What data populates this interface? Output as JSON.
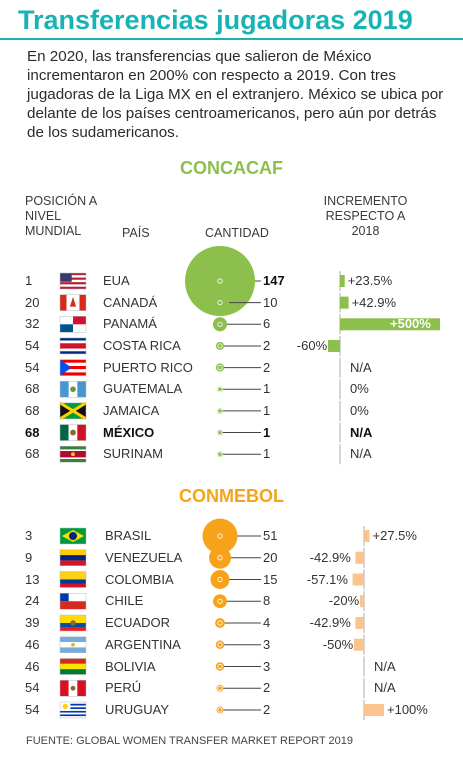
{
  "title": "Transferencias jugadoras 2019",
  "intro": "En 2020, las transferencias que salieron de México incrementaron en 200% con respecto a 2019. Con tres jugadoras de la Liga MX en el extranjero. México se ubica por delante de los países centroamericanos, pero aún por detrás de los sudamericanos.",
  "headers": {
    "rank": "POSICIÓN A NIVEL MUNDIAL",
    "country": "PAÍS",
    "amount": "CANTIDAD",
    "increase": "INCREMENTO RESPECTO A 2018"
  },
  "source": "FUENTE: GLOBAL WOMEN TRANSFER MARKET REPORT 2019",
  "colors": {
    "title": "#17b3b5",
    "concacaf": "#8cbf4b",
    "conmebol": "#f7a21b",
    "conmebol_bar": "#fbc38d"
  },
  "chart_data": [
    {
      "type": "bubble",
      "title": "CONCACAF",
      "rows": [
        {
          "rank": "1",
          "country": "EUA",
          "flag": "usa-flag",
          "amount": 147,
          "amount_label": "147",
          "increase": 23.5,
          "increase_label": "+23.5%",
          "bold": false
        },
        {
          "rank": "20",
          "country": "CANADÁ",
          "flag": "canada-flag",
          "amount": 10,
          "amount_label": "10",
          "increase": 42.9,
          "increase_label": "+42.9%",
          "bold": false
        },
        {
          "rank": "32",
          "country": "PANAMÁ",
          "flag": "panama-flag",
          "amount": 6,
          "amount_label": "6",
          "increase": 500,
          "increase_label": "+500%",
          "bold": false
        },
        {
          "rank": "54",
          "country": "COSTA RICA",
          "flag": "costa-rica-flag",
          "amount": 2,
          "amount_label": "2",
          "increase": -60,
          "increase_label": "-60%",
          "bold": false
        },
        {
          "rank": "54",
          "country": "PUERTO RICO",
          "flag": "puerto-rico-flag",
          "amount": 2,
          "amount_label": "2",
          "increase": null,
          "increase_label": "N/A",
          "bold": false
        },
        {
          "rank": "68",
          "country": "GUATEMALA",
          "flag": "guatemala-flag",
          "amount": 1,
          "amount_label": "1",
          "increase": 0,
          "increase_label": "0%",
          "bold": false
        },
        {
          "rank": "68",
          "country": "JAMAICA",
          "flag": "jamaica-flag",
          "amount": 1,
          "amount_label": "1",
          "increase": 0,
          "increase_label": "0%",
          "bold": false
        },
        {
          "rank": "68",
          "country": "MÉXICO",
          "flag": "mexico-flag",
          "amount": 1,
          "amount_label": "1",
          "increase": null,
          "increase_label": "N/A",
          "bold": true
        },
        {
          "rank": "68",
          "country": "SURINAM",
          "flag": "suriname-flag",
          "amount": 1,
          "amount_label": "1",
          "increase": null,
          "increase_label": "N/A",
          "bold": false
        }
      ]
    },
    {
      "type": "bubble",
      "title": "CONMEBOL",
      "rows": [
        {
          "rank": "3",
          "country": "BRASIL",
          "flag": "brazil-flag",
          "amount": 51,
          "amount_label": "51",
          "increase": 27.5,
          "increase_label": "+27.5%",
          "bold": false
        },
        {
          "rank": "9",
          "country": "VENEZUELA",
          "flag": "venezuela-flag",
          "amount": 20,
          "amount_label": "20",
          "increase": -42.9,
          "increase_label": "-42.9%",
          "bold": false
        },
        {
          "rank": "13",
          "country": "COLOMBIA",
          "flag": "colombia-flag",
          "amount": 15,
          "amount_label": "15",
          "increase": -57.1,
          "increase_label": "-57.1%",
          "bold": false
        },
        {
          "rank": "24",
          "country": "CHILE",
          "flag": "chile-flag",
          "amount": 8,
          "amount_label": "8",
          "increase": -20,
          "increase_label": "-20%",
          "bold": false
        },
        {
          "rank": "39",
          "country": "ECUADOR",
          "flag": "ecuador-flag",
          "amount": 4,
          "amount_label": "4",
          "increase": -42.9,
          "increase_label": "-42.9%",
          "bold": false
        },
        {
          "rank": "46",
          "country": "ARGENTINA",
          "flag": "argentina-flag",
          "amount": 3,
          "amount_label": "3",
          "increase": -50,
          "increase_label": "-50%",
          "bold": false
        },
        {
          "rank": "46",
          "country": "BOLIVIA",
          "flag": "bolivia-flag",
          "amount": 3,
          "amount_label": "3",
          "increase": null,
          "increase_label": "N/A",
          "bold": false
        },
        {
          "rank": "54",
          "country": "PERÚ",
          "flag": "peru-flag",
          "amount": 2,
          "amount_label": "2",
          "increase": null,
          "increase_label": "N/A",
          "bold": false
        },
        {
          "rank": "54",
          "country": "URUGUAY",
          "flag": "uruguay-flag",
          "amount": 2,
          "amount_label": "2",
          "increase": 100,
          "increase_label": "+100%",
          "bold": false
        }
      ]
    }
  ]
}
